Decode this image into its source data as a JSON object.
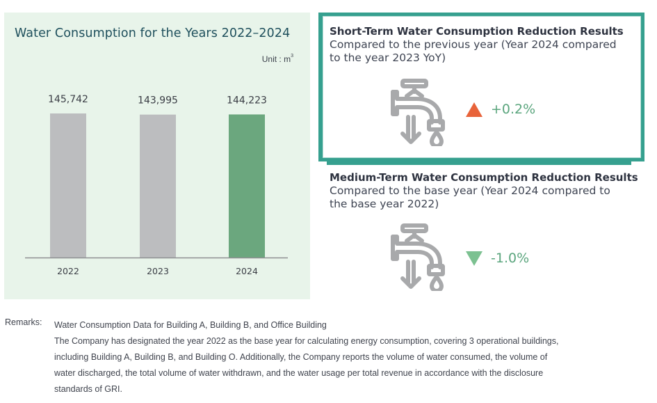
{
  "chart_data": {
    "type": "bar",
    "title": "Water Consumption for the Years 2022–2024",
    "unit_label": "Unit : m",
    "unit_superscript": "3",
    "xlabel": "",
    "ylabel": "",
    "categories": [
      "2022",
      "2023",
      "2024"
    ],
    "values": [
      145742,
      143995,
      144223
    ],
    "value_labels": [
      "145,742",
      "143,995",
      "144,223"
    ],
    "bar_colors": [
      "#bcbdbf",
      "#bcbdbf",
      "#6ba77e"
    ],
    "grid": false,
    "legend": "none"
  },
  "short_term": {
    "heading": "Short-Term Water Consumption Reduction Results",
    "line1": "Compared to the previous year (Year 2024 compared",
    "line2": "to the year 2023 YoY)",
    "direction": "up",
    "change": "+0.2%",
    "arrow_color": "#e8633a",
    "icon": "faucet-water-down-icon"
  },
  "medium_term": {
    "heading": "Medium-Term Water Consumption Reduction Results",
    "line1": "Compared to the base year (Year 2024 compared to",
    "line2": "the base year 2022)",
    "direction": "down",
    "change": "-1.0%",
    "arrow_color": "#7cc191",
    "icon": "faucet-water-down-icon"
  },
  "remarks": {
    "label": "Remarks:",
    "lines": [
      "Water Consumption Data for Building A, Building B, and Office Building",
      "The Company has designated the year 2022 as the base year for calculating energy consumption, covering 3 operational buildings,",
      "including Building A, Building B, and Building O. Additionally, the Company reports the volume of water consumed, the volume of",
      "water discharged, the total volume of water withdrawn, and the water usage per total revenue in accordance with the disclosure",
      "standards of GRI."
    ]
  },
  "colors": {
    "panel_bg": "#e8f4ea",
    "accent_teal": "#36a08f",
    "positive_text": "#5aa57d"
  }
}
